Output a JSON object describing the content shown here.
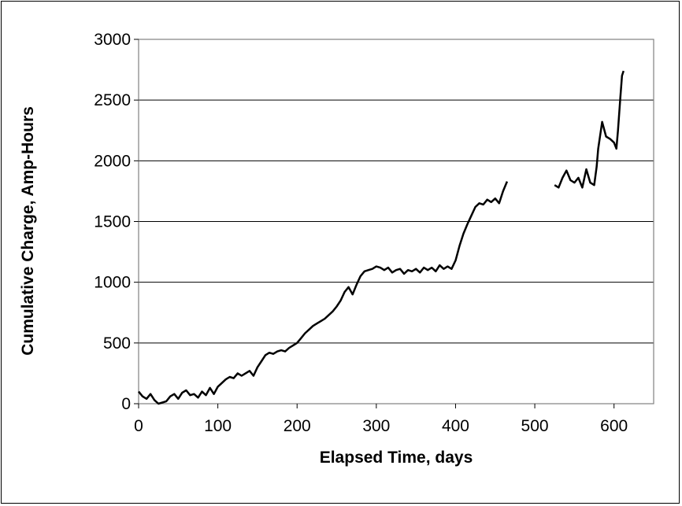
{
  "chart_data": {
    "type": "line",
    "title": "",
    "xlabel": "Elapsed Time, days",
    "ylabel": "Cumulative Charge, Amp-Hours",
    "xlim": [
      0,
      650
    ],
    "ylim": [
      0,
      3000
    ],
    "xticks": [
      0,
      100,
      200,
      300,
      400,
      500,
      600
    ],
    "yticks": [
      0,
      500,
      1000,
      1500,
      2000,
      2500,
      3000
    ],
    "x_tick_labels": [
      "0",
      "100",
      "200",
      "300",
      "400",
      "500",
      "600"
    ],
    "y_tick_labels": [
      "0",
      "500",
      "1000",
      "1500",
      "2000",
      "2500",
      "3000"
    ],
    "grid": "horizontal",
    "legend": "none",
    "colors": {
      "line": "#000000",
      "grid": "#000000",
      "plot_border": "#808080",
      "background": "#ffffff"
    },
    "series": [
      {
        "segments": [
          {
            "x": [
              0,
              5,
              10,
              15,
              20,
              25,
              30,
              35,
              40,
              45,
              50,
              55,
              60,
              65,
              70,
              75,
              80,
              85,
              90,
              95,
              100,
              105,
              110,
              115,
              120,
              125,
              130,
              135,
              140,
              145,
              150,
              155,
              160,
              165,
              170,
              175,
              180,
              185,
              190,
              195,
              200,
              205,
              210,
              215,
              220,
              225,
              230,
              235,
              240,
              245,
              250,
              255,
              260,
              265,
              270,
              275,
              280,
              285,
              290,
              295,
              300,
              305,
              310,
              315,
              320,
              325,
              330,
              335,
              340,
              345,
              350,
              355,
              360,
              365,
              370,
              375,
              380,
              385,
              390,
              395,
              400,
              405,
              410,
              415,
              420,
              425,
              430,
              435,
              440,
              445,
              450,
              455,
              460,
              465
            ],
            "y": [
              100,
              60,
              40,
              80,
              30,
              0,
              10,
              20,
              60,
              80,
              40,
              90,
              110,
              70,
              80,
              50,
              100,
              70,
              130,
              80,
              140,
              170,
              200,
              220,
              210,
              250,
              230,
              250,
              270,
              230,
              300,
              350,
              400,
              420,
              410,
              430,
              440,
              430,
              460,
              480,
              500,
              540,
              580,
              610,
              640,
              660,
              680,
              700,
              730,
              760,
              800,
              850,
              920,
              960,
              900,
              980,
              1050,
              1090,
              1100,
              1110,
              1130,
              1120,
              1100,
              1120,
              1080,
              1100,
              1110,
              1070,
              1100,
              1090,
              1110,
              1080,
              1120,
              1100,
              1120,
              1090,
              1140,
              1110,
              1130,
              1110,
              1180,
              1300,
              1400,
              1480,
              1550,
              1620,
              1650,
              1640,
              1680,
              1660,
              1690,
              1650,
              1750,
              1830
            ]
          },
          {
            "x": [
              525,
              530,
              535,
              540,
              545,
              550,
              555,
              560,
              565,
              570,
              575,
              578,
              580,
              585,
              590,
              595,
              600,
              603,
              605,
              608,
              610,
              612
            ],
            "y": [
              1800,
              1780,
              1860,
              1920,
              1840,
              1820,
              1860,
              1780,
              1930,
              1820,
              1800,
              1950,
              2100,
              2320,
              2200,
              2180,
              2150,
              2100,
              2250,
              2520,
              2700,
              2740
            ]
          }
        ]
      }
    ]
  }
}
